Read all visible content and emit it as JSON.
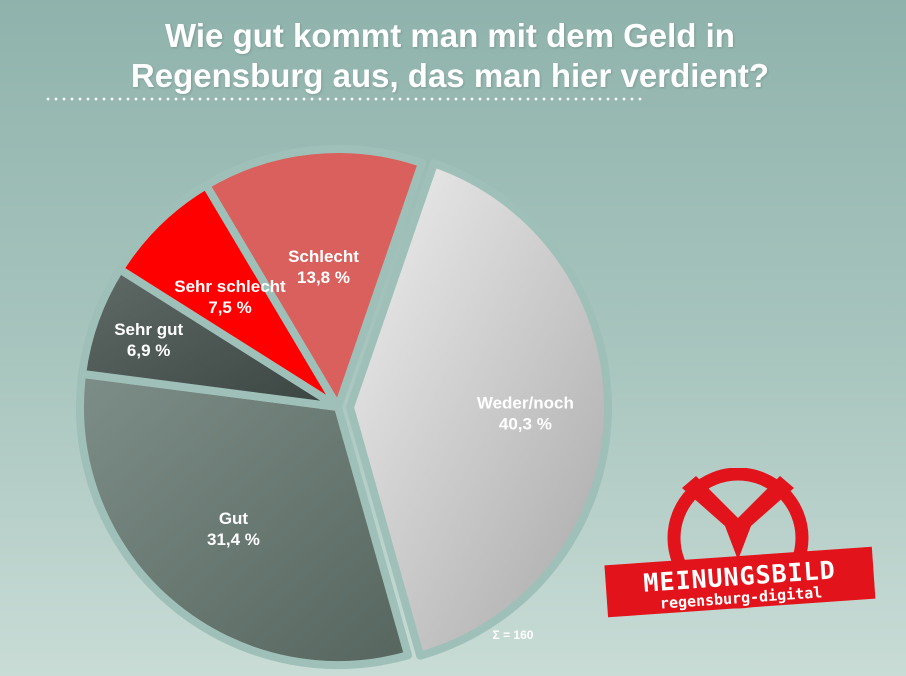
{
  "title_line1": "Wie gut kommt man mit dem Geld in",
  "title_line2": "Regensburg aus, das man hier verdient?",
  "sum_label": "Σ = 160",
  "logo": {
    "word": "MEINUNGSBILD",
    "sub": "regensburg-digital",
    "color": "#e3131b"
  },
  "chart_data": {
    "type": "pie",
    "title": "Wie gut kommt man mit dem Geld in Regensburg aus, das man hier verdient?",
    "slices": [
      {
        "label": "Weder/noch",
        "value_text": "40,3 %",
        "value": 40.3,
        "color": "#c9c9c9"
      },
      {
        "label": "Gut",
        "value_text": "31,4 %",
        "value": 31.4,
        "color": "#6b7c76"
      },
      {
        "label": "Sehr gut",
        "value_text": "6,9 %",
        "value": 6.9,
        "color": "#4f5a57"
      },
      {
        "label": "Sehr schlecht",
        "value_text": "7,5 %",
        "value": 7.5,
        "color": "#ff0000"
      },
      {
        "label": "Schlecht",
        "value_text": "13,8 %",
        "value": 13.8,
        "color": "#d9605c"
      }
    ],
    "total_n": 160
  }
}
